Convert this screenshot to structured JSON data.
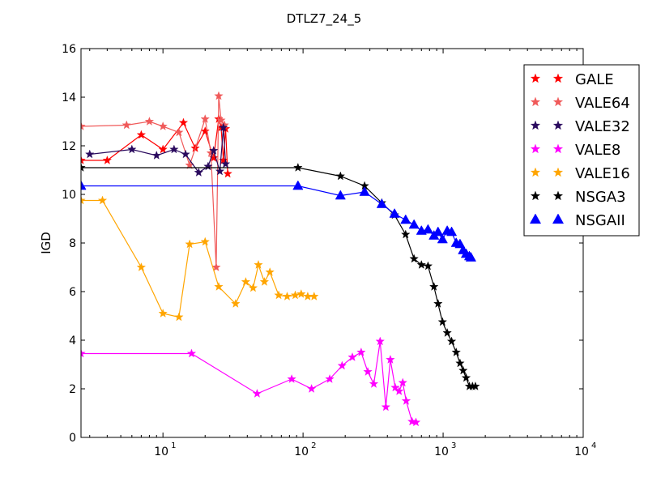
{
  "chart_data": {
    "type": "line",
    "title": "DTLZ7_24_5",
    "xlabel": "",
    "ylabel": "IGD",
    "xscale": "log",
    "xlim": [
      2.6,
      10000
    ],
    "ylim": [
      0,
      16
    ],
    "x_ticks": [
      {
        "value": 10,
        "base": "10",
        "exp": "1"
      },
      {
        "value": 100,
        "base": "10",
        "exp": "2"
      },
      {
        "value": 1000,
        "base": "10",
        "exp": "3"
      },
      {
        "value": 10000,
        "base": "10",
        "exp": "4"
      }
    ],
    "y_ticks": [
      0,
      2,
      4,
      6,
      8,
      10,
      12,
      14,
      16
    ],
    "grid": false,
    "legend_position": "top-right",
    "series": [
      {
        "name": "GALE",
        "color": "#ff0000",
        "marker": "star",
        "x": [
          2.6,
          4,
          7,
          10,
          14,
          17,
          20,
          23,
          25,
          26,
          27,
          28,
          29
        ],
        "y": [
          11.4,
          11.4,
          12.45,
          11.85,
          12.95,
          11.9,
          12.6,
          11.5,
          13.1,
          12.75,
          11.4,
          12.7,
          10.85
        ]
      },
      {
        "name": "VALE64",
        "color": "#f05a5a",
        "marker": "star",
        "x": [
          2.6,
          5.5,
          8,
          10,
          13,
          15.5,
          20,
          22,
          24,
          25,
          26,
          27.5
        ],
        "y": [
          12.8,
          12.85,
          13.0,
          12.8,
          12.55,
          11.2,
          13.1,
          11.7,
          7.0,
          14.05,
          13.05,
          12.85
        ]
      },
      {
        "name": "VALE32",
        "color": "#2a0a5e",
        "marker": "star",
        "x": [
          3,
          6,
          9,
          12,
          14.5,
          18,
          21,
          23,
          25.5,
          27,
          28
        ],
        "y": [
          11.65,
          11.85,
          11.6,
          11.85,
          11.65,
          10.9,
          11.15,
          11.8,
          10.95,
          12.75,
          11.25
        ]
      },
      {
        "name": "VALE8",
        "color": "#ff00ff",
        "marker": "star",
        "x": [
          2.6,
          16,
          47,
          83,
          115,
          155,
          190,
          225,
          260,
          290,
          320,
          355,
          390,
          420,
          455,
          485,
          515,
          545,
          600,
          640
        ],
        "y": [
          3.45,
          3.45,
          1.8,
          2.4,
          2.0,
          2.4,
          2.95,
          3.3,
          3.5,
          2.7,
          2.2,
          3.95,
          1.25,
          3.2,
          2.05,
          1.9,
          2.25,
          1.5,
          0.65,
          0.62
        ]
      },
      {
        "name": "VALE16",
        "color": "#ffa500",
        "marker": "star",
        "x": [
          2.6,
          3.7,
          7,
          10,
          13,
          15.5,
          20,
          25,
          33,
          39,
          44,
          48,
          53,
          58,
          67,
          77,
          88,
          97,
          108,
          120
        ],
        "y": [
          9.75,
          9.75,
          7.0,
          5.1,
          4.95,
          7.95,
          8.05,
          6.2,
          5.5,
          6.4,
          6.15,
          7.1,
          6.4,
          6.8,
          5.85,
          5.8,
          5.85,
          5.9,
          5.8,
          5.8
        ]
      },
      {
        "name": "NSGA3",
        "color": "#000000",
        "marker": "star",
        "x": [
          2.6,
          92,
          185,
          275,
          365,
          450,
          540,
          620,
          700,
          780,
          860,
          920,
          990,
          1070,
          1150,
          1240,
          1320,
          1390,
          1460,
          1540,
          1620,
          1700
        ],
        "y": [
          11.1,
          11.1,
          10.75,
          10.35,
          9.65,
          9.15,
          8.35,
          7.35,
          7.1,
          7.05,
          6.2,
          5.5,
          4.75,
          4.3,
          3.95,
          3.5,
          3.05,
          2.75,
          2.45,
          2.1,
          2.1,
          2.1
        ]
      },
      {
        "name": "NSGAII",
        "color": "#0000ff",
        "marker": "triangle",
        "x": [
          2.6,
          92,
          185,
          275,
          365,
          450,
          540,
          620,
          700,
          780,
          860,
          920,
          990,
          1070,
          1150,
          1240,
          1320,
          1390,
          1460,
          1540,
          1580
        ],
        "y": [
          10.35,
          10.35,
          9.95,
          10.1,
          9.6,
          9.2,
          8.95,
          8.75,
          8.5,
          8.55,
          8.3,
          8.45,
          8.15,
          8.5,
          8.45,
          8.0,
          7.95,
          7.7,
          7.55,
          7.45,
          7.4
        ]
      }
    ]
  }
}
